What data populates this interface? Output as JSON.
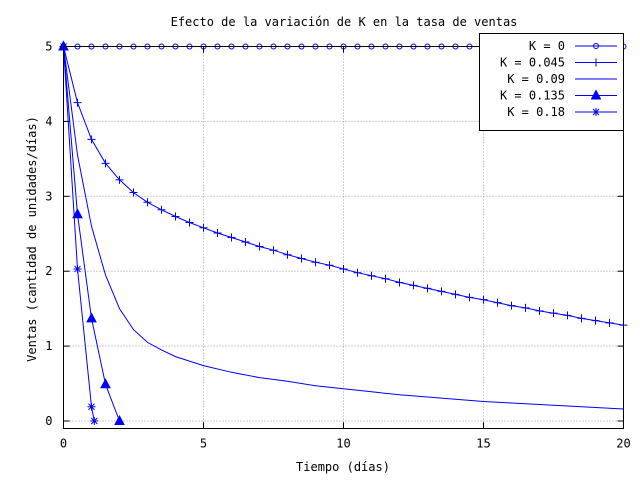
{
  "chart_data": {
    "type": "line",
    "title": "Efecto de la variación de K en la tasa de ventas",
    "xlabel": "Tiempo (días)",
    "ylabel": "Ventas (cantidad de unidades/días)",
    "xlim": [
      0,
      20
    ],
    "ylim": [
      -0.1,
      5
    ],
    "xticks": [
      "0",
      "5",
      "10",
      "15",
      "20"
    ],
    "yticks": [
      "0",
      "1",
      "2",
      "3",
      "4",
      "5"
    ],
    "grid": true,
    "legend_position": "top-right",
    "series": [
      {
        "name": "K = 0",
        "marker": "circle",
        "color": "#0000ff",
        "x": [
          0,
          0.5,
          1,
          1.5,
          2,
          2.5,
          3,
          3.5,
          4,
          4.5,
          5,
          5.5,
          6,
          6.5,
          7,
          7.5,
          8,
          8.5,
          9,
          9.5,
          10,
          10.5,
          11,
          11.5,
          12,
          12.5,
          13,
          13.5,
          14,
          14.5,
          15,
          15.5,
          16,
          16.5,
          17,
          17.5,
          18,
          18.5,
          19,
          19.5,
          20
        ],
        "y": [
          5,
          5,
          5,
          5,
          5,
          5,
          5,
          5,
          5,
          5,
          5,
          5,
          5,
          5,
          5,
          5,
          5,
          5,
          5,
          5,
          5,
          5,
          5,
          5,
          5,
          5,
          5,
          5,
          5,
          5,
          5,
          5,
          5,
          5,
          5,
          5,
          5,
          5,
          5,
          5,
          5
        ]
      },
      {
        "name": "K = 0.045",
        "marker": "plus",
        "color": "#0000ff",
        "x": [
          0,
          0.5,
          1,
          1.5,
          2,
          2.5,
          3,
          3.5,
          4,
          4.5,
          5,
          5.5,
          6,
          6.5,
          7,
          7.5,
          8,
          8.5,
          9,
          9.5,
          10,
          10.5,
          11,
          11.5,
          12,
          12.5,
          13,
          13.5,
          14,
          14.5,
          15,
          15.5,
          16,
          16.5,
          17,
          17.5,
          18,
          18.5,
          19,
          19.5,
          20
        ],
        "y": [
          5,
          4.25,
          3.76,
          3.44,
          3.22,
          3.05,
          2.92,
          2.82,
          2.73,
          2.65,
          2.58,
          2.51,
          2.45,
          2.39,
          2.33,
          2.28,
          2.22,
          2.17,
          2.12,
          2.08,
          2.03,
          1.98,
          1.94,
          1.9,
          1.85,
          1.81,
          1.77,
          1.73,
          1.69,
          1.65,
          1.62,
          1.58,
          1.54,
          1.51,
          1.47,
          1.44,
          1.41,
          1.37,
          1.34,
          1.31,
          1.28
        ]
      },
      {
        "name": "K = 0.09",
        "marker": "none",
        "color": "#0000ff",
        "x": [
          0,
          0.5,
          1,
          1.5,
          2,
          2.5,
          3,
          3.5,
          4,
          5,
          6,
          7,
          8,
          9,
          10,
          11,
          12,
          13,
          14,
          15,
          16,
          17,
          18,
          19,
          20
        ],
        "y": [
          5,
          3.55,
          2.6,
          1.95,
          1.5,
          1.22,
          1.05,
          0.95,
          0.86,
          0.74,
          0.65,
          0.58,
          0.53,
          0.47,
          0.43,
          0.39,
          0.35,
          0.32,
          0.29,
          0.26,
          0.24,
          0.22,
          0.2,
          0.18,
          0.16
        ]
      },
      {
        "name": "K = 0.135",
        "marker": "triangle",
        "color": "#0000ff",
        "x": [
          0,
          0.5,
          1,
          1.5,
          2
        ],
        "y": [
          5,
          2.76,
          1.37,
          0.49,
          0
        ]
      },
      {
        "name": "K = 0.18",
        "marker": "star",
        "color": "#0000ff",
        "x": [
          0,
          0.5,
          1,
          1.1
        ],
        "y": [
          5,
          2.03,
          0.19,
          0
        ]
      }
    ]
  }
}
